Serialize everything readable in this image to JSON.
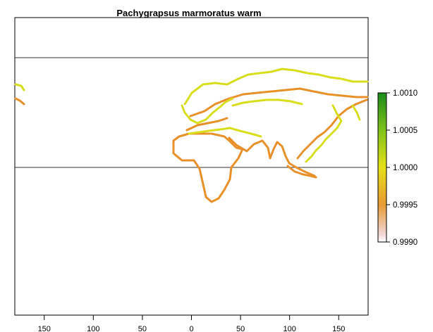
{
  "title": "Pachygrapsus marmoratus warm",
  "x_axis": {
    "ticks": [
      "150",
      "100",
      "50",
      "0",
      "50",
      "100",
      "150"
    ]
  },
  "legend": {
    "labels": [
      "1.0010",
      "1.0005",
      "1.0000",
      "0.9995",
      "0.9990"
    ],
    "colors": [
      "#1a8a1a",
      "#7fc21a",
      "#e6e01a",
      "#e89a33",
      "#f2d7d7",
      "#ffffff"
    ]
  },
  "colors": {
    "land_yellow": "#d8de1e",
    "land_orange": "#e8902a",
    "frame": "#000000",
    "reference_lines": "#333333"
  },
  "chart_data": {
    "type": "heatmap",
    "title": "Pachygrapsus marmoratus warm",
    "xlim": [
      -180,
      180
    ],
    "x_ticks": [
      -150,
      -100,
      -50,
      0,
      50,
      100,
      150
    ],
    "x_tick_labels": [
      "150",
      "100",
      "50",
      "0",
      "50",
      "100",
      "150"
    ],
    "value_range": [
      0.999,
      1.001
    ],
    "legend_ticks": [
      1.001,
      1.0005,
      1.0,
      0.9995,
      0.999
    ],
    "legend_tick_labels": [
      "1.0010",
      "1.0005",
      "1.0000",
      "0.9995",
      "0.9990"
    ],
    "legend_placement": "right",
    "grid": false,
    "reference_lines": [
      "equator",
      "arctic-circle"
    ],
    "series": [
      {
        "value": 1.0,
        "color": "#d8de1e",
        "regions": [
          "Europe",
          "Arctic coast",
          "Mediterranean",
          "Black Sea",
          "Southeast Asia",
          "Alaska"
        ]
      },
      {
        "value": 0.9997,
        "color": "#e8902a",
        "regions": [
          "Africa",
          "Arabia",
          "India",
          "East Asia",
          "Indonesia",
          "North America (Pacific)"
        ]
      }
    ]
  }
}
